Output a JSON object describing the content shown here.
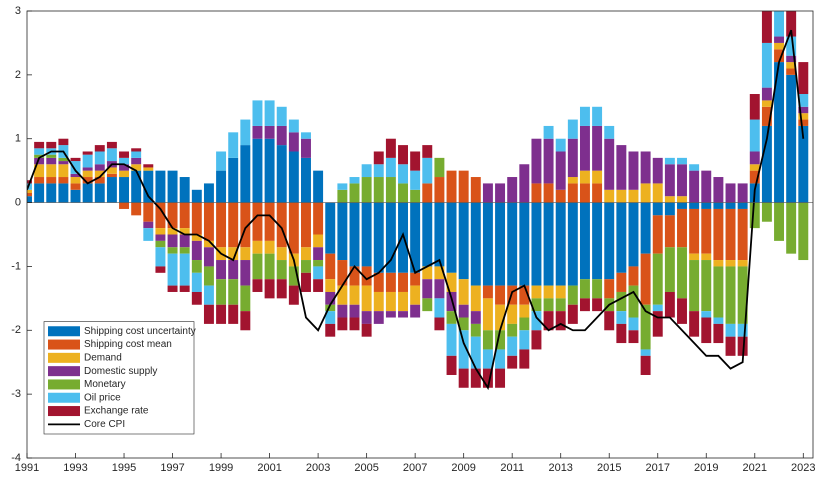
{
  "chart_data": {
    "type": "bar",
    "stacked": true,
    "x": [
      1991,
      1991.5,
      1992,
      1992.5,
      1993,
      1993.5,
      1994,
      1994.5,
      1995,
      1995.5,
      1996,
      1996.5,
      1997,
      1997.5,
      1998,
      1998.5,
      1999,
      1999.5,
      2000,
      2000.5,
      2001,
      2001.5,
      2002,
      2002.5,
      2003,
      2003.5,
      2004,
      2004.5,
      2005,
      2005.5,
      2006,
      2006.5,
      2007,
      2007.5,
      2008,
      2008.5,
      2009,
      2009.5,
      2010,
      2010.5,
      2011,
      2011.5,
      2012,
      2012.5,
      2013,
      2013.5,
      2014,
      2014.5,
      2015,
      2015.5,
      2016,
      2016.5,
      2017,
      2017.5,
      2018,
      2018.5,
      2019,
      2019.5,
      2020,
      2020.5,
      2021,
      2021.5,
      2022,
      2022.5,
      2023
    ],
    "xlim": [
      1991,
      2023.4
    ],
    "xticks": [
      1991,
      1993,
      1995,
      1997,
      1999,
      2001,
      2003,
      2005,
      2007,
      2009,
      2011,
      2013,
      2015,
      2017,
      2019,
      2021,
      2023
    ],
    "ylim": [
      -4,
      3
    ],
    "yticks": [
      -4,
      -3,
      -2,
      -1,
      0,
      1,
      2,
      3
    ],
    "legend": "lower left",
    "series": [
      {
        "name": "Shipping cost uncertainty",
        "color": "#0072BD",
        "values": [
          0.1,
          0.3,
          0.3,
          0.3,
          0.2,
          0.3,
          0.3,
          0.4,
          0.4,
          0.5,
          0.5,
          0.5,
          0.5,
          0.4,
          0.2,
          0.3,
          0.5,
          0.7,
          0.9,
          1.0,
          1.0,
          0.9,
          0.8,
          0.7,
          0.5,
          -0.8,
          -0.9,
          -1.0,
          -1.0,
          -1.1,
          -1.1,
          -1.1,
          -1.1,
          -1.0,
          -1.0,
          -1.1,
          -1.2,
          -1.3,
          -1.3,
          -1.3,
          -1.3,
          -1.3,
          -1.3,
          -1.3,
          -1.3,
          -1.3,
          -1.2,
          -1.2,
          -1.2,
          -1.1,
          -1.0,
          -0.8,
          -0.2,
          -0.2,
          -0.1,
          -0.1,
          -0.1,
          -0.1,
          -0.1,
          -0.1,
          0.3,
          1.2,
          2.2,
          2.0,
          1.2
        ]
      },
      {
        "name": "Shipping cost mean",
        "color": "#D95319",
        "values": [
          0.05,
          0.1,
          0.1,
          0.1,
          0.1,
          0.1,
          0.1,
          0.05,
          -0.1,
          -0.2,
          -0.3,
          -0.4,
          -0.4,
          -0.4,
          -0.5,
          -0.6,
          -0.7,
          -0.7,
          -0.7,
          -0.6,
          -0.6,
          -0.7,
          -0.8,
          -0.7,
          -0.5,
          -0.4,
          -0.4,
          -0.3,
          -0.3,
          -0.3,
          -0.3,
          -0.3,
          -0.2,
          0.3,
          0.4,
          0.5,
          0.5,
          0.4,
          -0.2,
          -0.3,
          -0.3,
          -0.3,
          0.3,
          0.3,
          0.2,
          0.3,
          0.3,
          0.3,
          -0.3,
          -0.3,
          -0.3,
          -0.8,
          -0.6,
          -0.5,
          -0.6,
          -0.7,
          -0.7,
          -0.8,
          -0.8,
          -0.8,
          0.2,
          0.3,
          0.2,
          0.1,
          0.1
        ]
      },
      {
        "name": "Demand",
        "color": "#EDB120",
        "values": [
          0.05,
          0.2,
          0.2,
          0.2,
          0.1,
          0.1,
          0.1,
          0.1,
          0.1,
          0.1,
          0.05,
          -0.1,
          -0.1,
          -0.1,
          -0.1,
          -0.1,
          -0.2,
          -0.2,
          -0.2,
          -0.2,
          -0.2,
          -0.2,
          -0.2,
          -0.2,
          -0.2,
          -0.2,
          -0.3,
          -0.3,
          -0.4,
          -0.3,
          -0.3,
          -0.3,
          -0.3,
          -0.2,
          -0.2,
          -0.3,
          -0.4,
          -0.4,
          -0.5,
          -0.4,
          -0.3,
          -0.2,
          -0.2,
          -0.2,
          -0.2,
          0.1,
          0.2,
          0.2,
          0.2,
          0.2,
          0.2,
          0.3,
          0.3,
          0.1,
          0.1,
          -0.1,
          -0.1,
          -0.1,
          -0.1,
          -0.1,
          0.1,
          0.1,
          0.1,
          0.1,
          0.1
        ]
      },
      {
        "name": "Domestic supply",
        "color": "#7E2F8E",
        "values": [
          0,
          0.1,
          0.1,
          0.05,
          0.05,
          0.05,
          0.1,
          0.1,
          0.1,
          0.1,
          -0.1,
          -0.1,
          -0.2,
          -0.2,
          -0.3,
          -0.3,
          -0.3,
          -0.3,
          -0.4,
          0.2,
          0.2,
          0.3,
          0.3,
          0.3,
          -0.2,
          -0.2,
          -0.2,
          -0.2,
          -0.2,
          -0.2,
          -0.1,
          -0.1,
          -0.2,
          -0.3,
          -0.3,
          -0.3,
          -0.2,
          -0.2,
          0.3,
          0.3,
          0.4,
          0.6,
          0.7,
          0.7,
          0.6,
          0.6,
          0.7,
          0.7,
          0.8,
          0.7,
          0.6,
          0.5,
          0.4,
          0.5,
          0.5,
          0.5,
          0.5,
          0.4,
          0.3,
          0.3,
          0.2,
          0.2,
          0.1,
          0.1,
          0.1
        ]
      },
      {
        "name": "Monetary",
        "color": "#77AC30",
        "values": [
          0,
          0.05,
          0.05,
          0.05,
          0,
          0,
          0,
          0,
          0,
          0,
          0,
          -0.1,
          -0.1,
          -0.1,
          -0.2,
          -0.3,
          -0.4,
          -0.4,
          -0.4,
          -0.4,
          -0.4,
          -0.3,
          -0.3,
          -0.2,
          -0.1,
          -0.1,
          0.2,
          0.3,
          0.4,
          0.4,
          0.4,
          0.3,
          0.2,
          -0.2,
          0.3,
          -0.2,
          -0.2,
          -0.2,
          -0.3,
          -0.3,
          -0.2,
          -0.2,
          -0.2,
          -0.2,
          -0.2,
          -0.3,
          -0.3,
          -0.3,
          -0.2,
          -0.3,
          -0.5,
          -0.7,
          -0.8,
          -0.7,
          -0.8,
          -0.8,
          -0.8,
          -0.8,
          -0.9,
          -0.9,
          -0.4,
          -0.3,
          -0.6,
          -0.8,
          -0.9
        ]
      },
      {
        "name": "Oil price",
        "color": "#4DBEEE",
        "values": [
          0.1,
          0.1,
          0.1,
          0.2,
          0.2,
          0.2,
          0.2,
          0.2,
          0.1,
          0.1,
          -0.2,
          -0.3,
          -0.5,
          -0.5,
          -0.3,
          -0.3,
          0.3,
          0.4,
          0.4,
          0.4,
          0.4,
          0.3,
          0.2,
          0.1,
          -0.2,
          -0.2,
          0.1,
          0.1,
          0.2,
          0.2,
          0.3,
          0.3,
          0.3,
          0.4,
          -0.3,
          -0.5,
          -0.6,
          -0.5,
          -0.3,
          -0.3,
          -0.3,
          -0.3,
          -0.3,
          0.2,
          0.2,
          0.3,
          0.3,
          0.3,
          0.2,
          -0.2,
          -0.2,
          -0.1,
          -0.1,
          0.1,
          0.1,
          0.1,
          -0.1,
          -0.1,
          -0.2,
          -0.2,
          0.5,
          0.7,
          0.4,
          0.3,
          0.2
        ]
      },
      {
        "name": "Exchange rate",
        "color": "#A2142F",
        "values": [
          0.05,
          0.1,
          0.1,
          0.1,
          0.05,
          0.05,
          0.1,
          0.1,
          0.1,
          0.05,
          0.05,
          -0.1,
          -0.1,
          -0.1,
          -0.2,
          -0.3,
          -0.3,
          -0.3,
          -0.3,
          -0.2,
          -0.3,
          -0.3,
          -0.3,
          -0.3,
          -0.2,
          -0.2,
          -0.2,
          -0.2,
          -0.2,
          0.2,
          0.3,
          0.3,
          0.3,
          0.2,
          -0.2,
          -0.3,
          -0.3,
          -0.3,
          -0.3,
          -0.3,
          -0.2,
          -0.3,
          -0.3,
          -0.3,
          -0.3,
          -0.3,
          -0.2,
          -0.2,
          -0.3,
          -0.3,
          -0.2,
          -0.3,
          -0.4,
          -0.4,
          -0.4,
          -0.4,
          -0.4,
          -0.3,
          -0.3,
          -0.3,
          0.4,
          0.5,
          0.4,
          0.5,
          0.5
        ]
      },
      {
        "name": "Core CPI",
        "type": "line",
        "color": "#000000",
        "values": [
          0.2,
          0.7,
          0.8,
          0.8,
          0.5,
          0.3,
          0.4,
          0.6,
          0.6,
          0.5,
          0.1,
          -0.1,
          -0.4,
          -0.5,
          -0.5,
          -0.6,
          -0.8,
          -0.9,
          -0.4,
          -0.2,
          -0.2,
          -0.4,
          -0.9,
          -1.8,
          -2.0,
          -1.6,
          -1.3,
          -1.0,
          -1.2,
          -1.1,
          -0.9,
          -0.5,
          -1.1,
          -1.0,
          -0.9,
          -1.5,
          -2.2,
          -2.6,
          -2.9,
          -2.0,
          -1.4,
          -1.3,
          -1.8,
          -2.0,
          -1.9,
          -2.0,
          -2.0,
          -1.8,
          -1.6,
          -1.5,
          -1.4,
          -1.7,
          -1.8,
          -1.8,
          -2.0,
          -2.2,
          -2.4,
          -2.4,
          -2.6,
          -2.5,
          0.2,
          1.0,
          2.2,
          2.7,
          1.0
        ]
      }
    ]
  }
}
